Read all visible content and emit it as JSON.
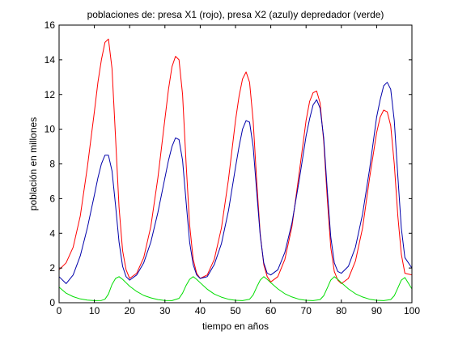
{
  "chart_data": {
    "type": "line",
    "title": "poblaciones de: presa X1 (rojo), presa X2 (azul)y depredador (verde)",
    "xlabel": "tiempo en años",
    "ylabel": "población en millones",
    "xlim": [
      0,
      100
    ],
    "ylim": [
      0,
      16
    ],
    "xticks": [
      0,
      10,
      20,
      30,
      40,
      50,
      60,
      70,
      80,
      90,
      100
    ],
    "yticks": [
      0,
      2,
      4,
      6,
      8,
      10,
      12,
      14,
      16
    ],
    "grid": false,
    "series": [
      {
        "color": "#ff0000",
        "x": [
          0,
          2,
          4,
          6,
          8,
          10,
          11,
          12,
          13,
          14,
          15,
          16,
          17,
          18,
          19,
          20,
          22,
          24,
          26,
          28,
          30,
          31,
          32,
          33,
          34,
          35,
          36,
          37,
          38,
          39,
          40,
          42,
          44,
          46,
          48,
          50,
          51,
          52,
          53,
          54,
          55,
          56,
          57,
          58,
          59,
          60,
          62,
          64,
          66,
          68,
          70,
          71,
          72,
          73,
          74,
          75,
          76,
          77,
          78,
          79,
          80,
          82,
          84,
          86,
          88,
          90,
          91,
          92,
          93,
          94,
          95,
          96,
          97,
          98,
          100
        ],
        "y": [
          1.9,
          2.3,
          3.2,
          5.0,
          7.8,
          11.0,
          12.7,
          14.0,
          15.0,
          15.2,
          13.5,
          9.5,
          5.5,
          3.0,
          1.9,
          1.4,
          1.7,
          2.6,
          4.4,
          7.2,
          10.6,
          12.3,
          13.6,
          14.2,
          14.0,
          12.0,
          8.0,
          4.5,
          2.5,
          1.7,
          1.4,
          1.6,
          2.5,
          4.3,
          7.1,
          10.5,
          11.9,
          12.9,
          13.3,
          12.7,
          10.5,
          7.0,
          4.0,
          2.2,
          1.5,
          1.2,
          1.5,
          2.5,
          4.4,
          7.4,
          10.5,
          11.6,
          12.1,
          12.2,
          11.5,
          9.3,
          6.0,
          3.2,
          1.8,
          1.3,
          1.1,
          1.4,
          2.4,
          4.3,
          7.2,
          9.8,
          10.7,
          11.1,
          11.0,
          10.2,
          8.0,
          5.0,
          2.8,
          1.7,
          1.6
        ]
      },
      {
        "color": "#0000aa",
        "x": [
          0,
          2,
          4,
          6,
          8,
          10,
          11,
          12,
          13,
          14,
          15,
          16,
          17,
          18,
          19,
          20,
          22,
          24,
          26,
          28,
          30,
          31,
          32,
          33,
          34,
          35,
          36,
          37,
          38,
          39,
          40,
          42,
          44,
          46,
          48,
          50,
          51,
          52,
          53,
          54,
          55,
          56,
          57,
          58,
          59,
          60,
          62,
          64,
          66,
          68,
          70,
          71,
          72,
          73,
          74,
          75,
          76,
          77,
          78,
          79,
          80,
          82,
          84,
          86,
          88,
          90,
          91,
          92,
          93,
          94,
          95,
          96,
          97,
          98,
          100
        ],
        "y": [
          1.5,
          1.1,
          1.6,
          2.7,
          4.3,
          6.2,
          7.2,
          8.0,
          8.5,
          8.5,
          7.6,
          5.6,
          3.5,
          2.1,
          1.5,
          1.3,
          1.6,
          2.3,
          3.5,
          5.2,
          7.2,
          8.2,
          9.0,
          9.5,
          9.4,
          8.2,
          5.8,
          3.5,
          2.2,
          1.6,
          1.4,
          1.5,
          2.2,
          3.4,
          5.3,
          7.8,
          9.0,
          10.0,
          10.5,
          10.4,
          9.0,
          6.4,
          3.9,
          2.3,
          1.7,
          1.6,
          1.9,
          2.9,
          4.6,
          7.0,
          9.6,
          10.6,
          11.4,
          11.7,
          11.2,
          9.5,
          6.5,
          3.8,
          2.3,
          1.8,
          1.7,
          2.1,
          3.2,
          5.1,
          7.7,
          10.7,
          11.7,
          12.5,
          12.7,
          12.3,
          10.5,
          7.3,
          4.3,
          2.6,
          2.0
        ]
      },
      {
        "color": "#00dd00",
        "x": [
          0,
          2,
          4,
          6,
          8,
          10,
          12,
          13,
          14,
          15,
          16,
          17,
          18,
          19,
          20,
          22,
          24,
          26,
          28,
          30,
          32,
          34,
          35,
          36,
          37,
          38,
          39,
          40,
          42,
          44,
          46,
          48,
          50,
          52,
          54,
          55,
          56,
          57,
          58,
          59,
          60,
          62,
          64,
          66,
          68,
          70,
          72,
          74,
          75,
          76,
          77,
          78,
          79,
          80,
          82,
          84,
          86,
          88,
          90,
          92,
          94,
          95,
          96,
          97,
          98,
          100
        ],
        "y": [
          0.9,
          0.55,
          0.35,
          0.22,
          0.15,
          0.12,
          0.13,
          0.2,
          0.5,
          1.05,
          1.4,
          1.5,
          1.35,
          1.15,
          0.95,
          0.65,
          0.42,
          0.28,
          0.18,
          0.13,
          0.12,
          0.25,
          0.55,
          1.0,
          1.35,
          1.5,
          1.35,
          1.15,
          0.78,
          0.5,
          0.32,
          0.2,
          0.14,
          0.12,
          0.2,
          0.45,
          0.9,
          1.3,
          1.5,
          1.35,
          1.15,
          0.8,
          0.52,
          0.33,
          0.2,
          0.14,
          0.12,
          0.18,
          0.4,
          0.85,
          1.3,
          1.5,
          1.35,
          1.15,
          0.8,
          0.52,
          0.33,
          0.2,
          0.14,
          0.12,
          0.18,
          0.4,
          0.85,
          1.3,
          1.45,
          0.8
        ]
      }
    ]
  }
}
